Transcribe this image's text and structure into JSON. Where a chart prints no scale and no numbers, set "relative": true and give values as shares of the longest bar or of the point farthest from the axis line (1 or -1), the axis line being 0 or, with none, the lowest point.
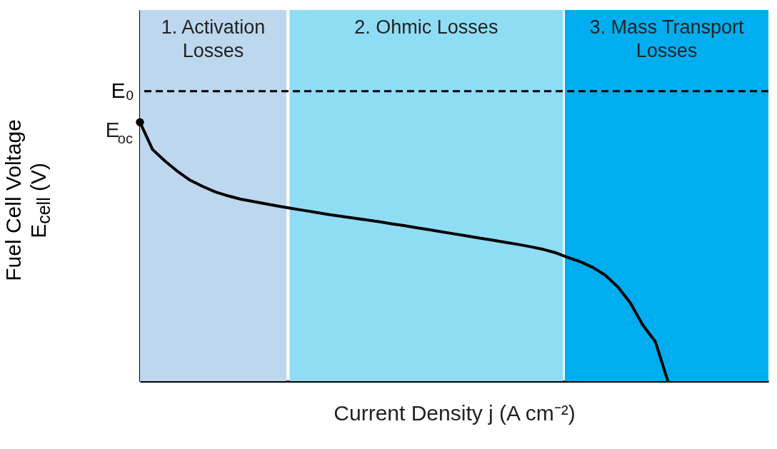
{
  "chart_data": {
    "type": "line",
    "relative": true,
    "xlabel": "Current Density j (A cm⁻²)",
    "ylabel": "Fuel Cell Voltage\nE$_{cell}$ (V)",
    "tick_labels": false,
    "categories": [
      null,
      null,
      null,
      null,
      null,
      null,
      null,
      null,
      null,
      null,
      null,
      null,
      null,
      null,
      null,
      null,
      null,
      null,
      null,
      null,
      null,
      null,
      null,
      null,
      null,
      null,
      null,
      null,
      null,
      null,
      null,
      null,
      null,
      null,
      null,
      null,
      null,
      null,
      null,
      null,
      null,
      null,
      null,
      null,
      null,
      null,
      null,
      null,
      null,
      null,
      null
    ],
    "series": [
      {
        "color": "#000000",
        "values": [
          1,
          0.895,
          0.85,
          0.81,
          0.776,
          0.752,
          0.731,
          0.716,
          0.703,
          0.694,
          0.685,
          0.676,
          0.668,
          0.66,
          0.652,
          0.644,
          0.637,
          0.63,
          0.623,
          0.616,
          0.608,
          0.601,
          0.593,
          0.585,
          0.577,
          0.569,
          0.561,
          0.553,
          0.545,
          0.537,
          0.529,
          0.52,
          0.51,
          0.497,
          0.479,
          0.462,
          0.44,
          0.41,
          0.365,
          0.303,
          0.217,
          0.153,
          0,
          null,
          null,
          null,
          null,
          null,
          null,
          null,
          null
        ]
      }
    ],
    "ref_lines": [
      {
        "axis": "y",
        "value": 1.12,
        "label": "E₀",
        "line_style": "dashed",
        "color": "#000000"
      }
    ],
    "annotations": [
      "1. Activation\nLosses",
      "2. Ohmic Losses",
      "3. Mass Transport\nLosses",
      "E$_{oc}$"
    ]
  }
}
